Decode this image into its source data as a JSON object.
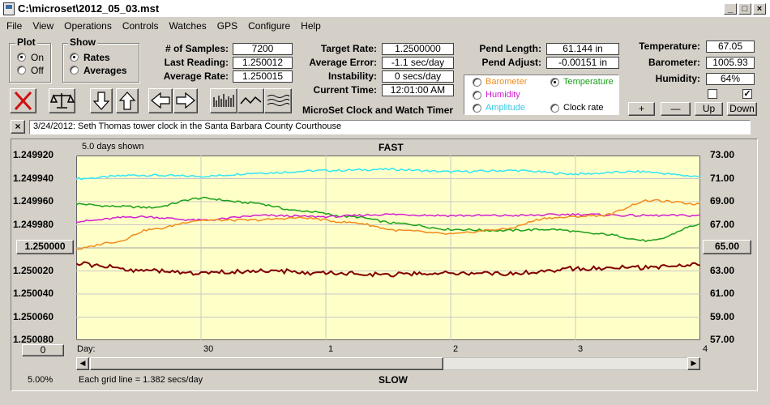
{
  "window": {
    "title": "C:\\microset\\2012_05_03.mst",
    "min": "_",
    "max": "□",
    "close": "×"
  },
  "menu": [
    "File",
    "View",
    "Operations",
    "Controls",
    "Watches",
    "GPS",
    "Configure",
    "Help"
  ],
  "plot_group": {
    "title": "Plot",
    "on": "On",
    "off": "Off",
    "selected": "On"
  },
  "show_group": {
    "title": "Show",
    "rates": "Rates",
    "averages": "Averages",
    "selected": "Rates"
  },
  "stats": {
    "samples_label": "# of Samples:",
    "samples": "7200",
    "last_label": "Last Reading:",
    "last": "1.250012",
    "avg_rate_label": "Average Rate:",
    "avg_rate": "1.250015",
    "target_label": "Target Rate:",
    "target": "1.2500000",
    "avg_err_label": "Average Error:",
    "avg_err": "-1.1 sec/day",
    "instab_label": "Instability:",
    "instab": "0 secs/day",
    "time_label": "Current Time:",
    "time": "12:01:00 AM",
    "pend_len_label": "Pend Length:",
    "pend_len": "61.144 in",
    "pend_adj_label": "Pend Adjust:",
    "pend_adj": "-0.00151 in",
    "temp_label": "Temperature:",
    "temp": "67.05",
    "baro_label": "Barometer:",
    "baro": "1005.93",
    "hum_label": "Humidity:",
    "hum": "64%"
  },
  "app_caption": "MicroSet Clock and Watch Timer",
  "sensor_select": {
    "barometer": "Barometer",
    "temperature": "Temperature",
    "humidity": "Humidity",
    "amplitude": "Amplitude",
    "clock_rate": "Clock rate",
    "selected": "Temperature"
  },
  "adjust_buttons": {
    "plus": "+",
    "minus": "—",
    "up": "Up",
    "down": "Down"
  },
  "toolbar_icons": [
    "close-red-x-icon",
    "balance-scale-icon",
    "arrow-down-icon",
    "arrow-up-icon",
    "arrow-left-icon",
    "arrow-right-icon",
    "bar-chart-icon",
    "line-wave-icon",
    "multi-wave-icon"
  ],
  "note": {
    "clear": "×",
    "text": "3/24/2012: Seth Thomas tower clock in the Santa Barbara County Courthouse"
  },
  "chart_header": {
    "days_shown": "5.0 days shown",
    "top": "FAST",
    "bottom": "SLOW",
    "grid_info": "Each grid line = 1.382 secs/day",
    "pct": "5.00%",
    "center_left": "1.250000",
    "center_right": "65.00",
    "offset_left": "0",
    "day_label": "Day:"
  },
  "colors": {
    "plot_bg": "#ffffc8",
    "rate": "#800000",
    "temperature": "#1aa01a",
    "barometer": "#f08c1e",
    "humidity": "#d21ed2",
    "amplitude": "#32e6f5"
  },
  "chart_data": {
    "type": "line",
    "x_ticks": [
      {
        "value": 29.0,
        "label": ""
      },
      {
        "value": 30.0,
        "label": "30"
      },
      {
        "value": 31.0,
        "label": "1"
      },
      {
        "value": 32.0,
        "label": "2"
      },
      {
        "value": 33.0,
        "label": "3"
      },
      {
        "value": 34.0,
        "label": "4"
      }
    ],
    "xlim": [
      29.0,
      34.0
    ],
    "y_left_ticks": [
      "1.249920",
      "1.249940",
      "1.249960",
      "1.249980",
      "1.250000",
      "1.250020",
      "1.250040",
      "1.250060",
      "1.250080"
    ],
    "y_right_ticks": [
      "73.00",
      "71.00",
      "69.00",
      "67.00",
      "65.00",
      "63.00",
      "61.00",
      "59.00",
      "57.00"
    ],
    "ylim_left": [
      1.25008,
      1.24992
    ],
    "ylim_right": [
      57,
      73
    ],
    "series": [
      {
        "key": "amplitude",
        "x": [
          29.0,
          29.5,
          30.0,
          30.5,
          31.0,
          31.5,
          32.0,
          32.5,
          33.0,
          33.5,
          34.0
        ],
        "y": [
          71.0,
          71.3,
          71.2,
          71.5,
          71.7,
          71.8,
          71.6,
          71.7,
          71.4,
          71.6,
          71.2
        ],
        "axis": "right"
      },
      {
        "key": "temperature",
        "x": [
          29.0,
          29.3,
          29.6,
          30.0,
          30.4,
          30.8,
          31.2,
          31.6,
          32.0,
          32.4,
          32.8,
          33.2,
          33.6,
          34.0
        ],
        "y": [
          68.8,
          68.6,
          68.5,
          69.3,
          68.9,
          68.2,
          67.7,
          67.1,
          66.6,
          66.5,
          66.6,
          66.2,
          65.6,
          67.0
        ],
        "axis": "right"
      },
      {
        "key": "humidity",
        "x": [
          29.0,
          29.5,
          30.0,
          30.5,
          31.0,
          31.5,
          32.0,
          32.5,
          33.0,
          33.5,
          34.0
        ],
        "y": [
          67.3,
          67.7,
          67.4,
          67.8,
          67.7,
          67.9,
          67.8,
          67.8,
          67.9,
          67.8,
          67.8
        ],
        "axis": "right"
      },
      {
        "key": "barometer",
        "x": [
          29.0,
          29.3,
          29.6,
          30.0,
          30.4,
          30.8,
          31.2,
          31.6,
          32.0,
          32.4,
          32.8,
          33.2,
          33.6,
          34.0
        ],
        "y": [
          64.9,
          65.5,
          66.6,
          67.4,
          67.4,
          67.6,
          67.2,
          66.5,
          66.2,
          66.6,
          67.6,
          67.8,
          69.1,
          68.8
        ],
        "axis": "right"
      },
      {
        "key": "rate",
        "x": [
          29.0,
          29.5,
          30.0,
          30.5,
          31.0,
          31.5,
          32.0,
          32.5,
          33.0,
          33.5,
          34.0
        ],
        "y": [
          1.250014,
          1.250019,
          1.250022,
          1.25002,
          1.250022,
          1.250023,
          1.250022,
          1.250022,
          1.250018,
          1.250017,
          1.250014
        ],
        "axis": "left"
      }
    ]
  }
}
